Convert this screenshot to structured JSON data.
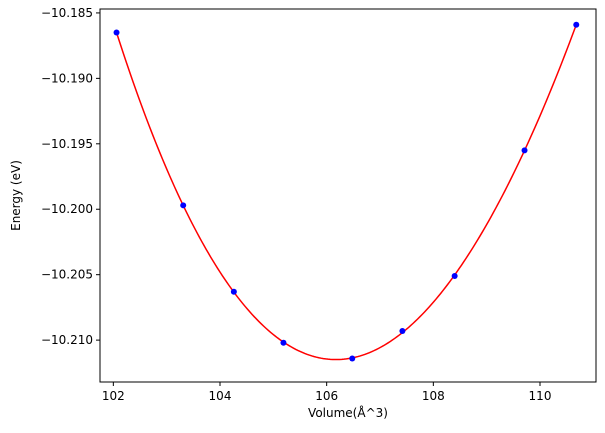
{
  "chart_data": {
    "type": "scatter",
    "title": "",
    "xlabel": "Volume(Å^3)",
    "ylabel": "Energy (eV)",
    "xlim": [
      101.75,
      111.05
    ],
    "ylim": [
      -10.2132,
      -10.1847
    ],
    "x_ticks": [
      102,
      104,
      106,
      108,
      110
    ],
    "x_tick_labels": [
      "102",
      "104",
      "106",
      "108",
      "110"
    ],
    "y_ticks": [
      -10.185,
      -10.19,
      -10.195,
      -10.2,
      -10.205,
      -10.21
    ],
    "y_tick_labels": [
      "−10.185",
      "−10.190",
      "−10.195",
      "−10.200",
      "−10.205",
      "−10.210"
    ],
    "grid": false,
    "legend": "none",
    "series": [
      {
        "kind": "points",
        "color": "#0000ff",
        "x": [
          102.06,
          103.31,
          104.26,
          105.19,
          106.48,
          107.42,
          108.4,
          109.71,
          110.68
        ],
        "y": [
          -10.1865,
          -10.1997,
          -10.2063,
          -10.2102,
          -10.2114,
          -10.2093,
          -10.2051,
          -10.1955,
          -10.1859
        ]
      },
      {
        "kind": "fit-line",
        "color": "#ff0000",
        "fit": "quartic",
        "x_range": [
          102.06,
          110.68
        ]
      }
    ]
  }
}
